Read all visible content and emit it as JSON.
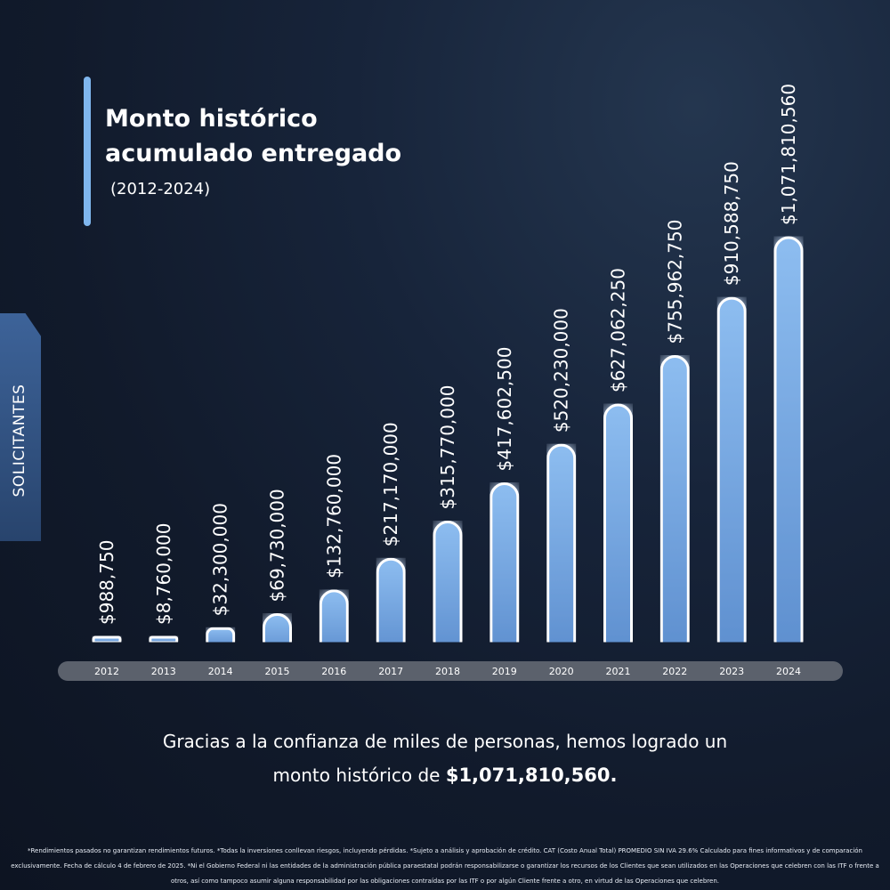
{
  "title_line1": "Monto histórico",
  "title_line2": "acumulado entregado",
  "subtitle": "(2012-2024)",
  "side_tab_label": "SOLICITANTES",
  "message_line1": "Gracias a la confianza de miles de personas, hemos logrado un",
  "message_line2_prefix": "monto histórico de ",
  "message_line2_amount": "$1,071,810,560.",
  "footnote": "*Rendimientos pasados no garantizan rendimientos futuros. *Todas la inversiones conllevan riesgos, incluyendo pérdidas. *Sujeto a análisis y aprobación de crédito. CAT (Costo Anual Total) PROMEDIO SIN IVA 29.6% Calculado para fines informativos y de comparación exclusivamente. Fecha de cálculo 4 de febrero de 2025. *Ni el Gobierno Federal ni las entidades de la administración pública paraestatal podrán responsabilizarse o garantizar los recursos de los Clientes que sean utilizados en las Operaciones que celebren con las ITF o frente a otros, así como tampoco asumir alguna responsabilidad por las obligaciones contraídas por las ITF o por algún Cliente frente a otro, en virtud de las Operaciones que celebren.",
  "colors": {
    "accent": "#7fb6ee",
    "bar_fill": "#78aae3",
    "bar_outline": "#ffffff",
    "axis_band": "#5b616c",
    "side_tab": "#3d6399"
  },
  "chart_data": {
    "type": "bar",
    "categories": [
      "2012",
      "2013",
      "2014",
      "2015",
      "2016",
      "2017",
      "2018",
      "2019",
      "2020",
      "2021",
      "2022",
      "2023",
      "2024"
    ],
    "values": [
      988750,
      8760000,
      32300000,
      69730000,
      132760000,
      217170000,
      315770000,
      417602500,
      520230000,
      627062250,
      755962750,
      910588750,
      1071810560
    ],
    "labels": [
      "$988,750",
      "$8,760,000",
      "$32,300,000",
      "$69,730,000",
      "$132,760,000",
      "$217,170,000",
      "$315,770,000",
      "$417,602,500",
      "$520,230,000",
      "$627,062,250",
      "$755,962,750",
      "$910,588,750",
      "$1,071,810,560"
    ],
    "title": "Monto histórico acumulado entregado",
    "xlabel": "",
    "ylabel": "",
    "grid": false,
    "legend": "none"
  }
}
